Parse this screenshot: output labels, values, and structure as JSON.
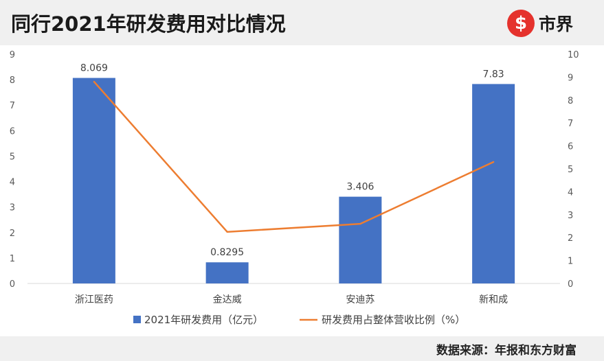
{
  "header": {
    "title": "同行2021年研发费用对比情况",
    "brand_logo": "$",
    "brand_name": "市界"
  },
  "footer": {
    "source": "数据来源：年报和东方财富"
  },
  "colors": {
    "bar": "#4472c4",
    "line": "#ed7d31",
    "brand": "#e5322d"
  },
  "chart_data": {
    "type": "bar",
    "categories": [
      "浙江医药",
      "金达威",
      "安迪苏",
      "新和成"
    ],
    "series": [
      {
        "name": "2021年研发费用（亿元）",
        "type": "bar",
        "axis": "left",
        "values": [
          8.069,
          0.8295,
          3.406,
          7.83
        ],
        "data_labels": [
          "8.069",
          "0.8295",
          "3.406",
          "7.83"
        ]
      },
      {
        "name": "研发费用占整体营收比例（%）",
        "type": "line",
        "axis": "right",
        "values": [
          8.8,
          2.25,
          2.6,
          5.3
        ]
      }
    ],
    "y_left": {
      "min": 0,
      "max": 9,
      "ticks": [
        "0",
        "1",
        "2",
        "3",
        "4",
        "5",
        "6",
        "7",
        "8",
        "9"
      ]
    },
    "y_right": {
      "min": 0,
      "max": 10,
      "ticks": [
        "0",
        "1",
        "2",
        "3",
        "4",
        "5",
        "6",
        "7",
        "8",
        "9",
        "10"
      ]
    },
    "grid": false,
    "legend_position": "bottom"
  }
}
